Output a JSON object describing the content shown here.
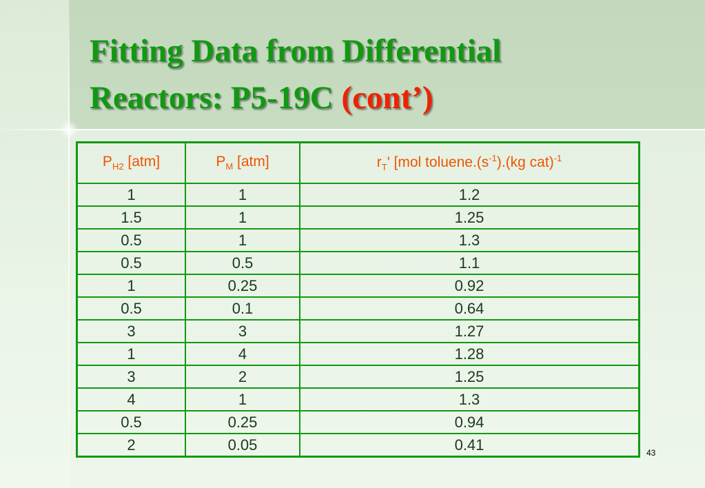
{
  "slide": {
    "title_line1": "Fitting Data from Differential",
    "title_line2_main": "Reactors: P5-19C ",
    "title_line2_accent": "(cont’)",
    "page_number": "43",
    "colors": {
      "title_green": "#119911",
      "accent_red": "#ee2200",
      "header_orange": "#ee5500",
      "border_green": "#119911"
    }
  },
  "table": {
    "headers": {
      "col1_main": "P",
      "col1_sub": "H2",
      "col1_unit": " [atm]",
      "col2_main": "P",
      "col2_sub": "M",
      "col2_unit": " [atm]",
      "col3_r": "r",
      "col3_sub": "T",
      "col3_text1": "' [mol toluene.(s",
      "col3_sup1": "-1",
      "col3_text2": ").(kg cat)",
      "col3_sup2": "-1"
    },
    "rows": [
      [
        "1",
        "1",
        "1.2"
      ],
      [
        "1.5",
        "1",
        "1.25"
      ],
      [
        "0.5",
        "1",
        "1.3"
      ],
      [
        "0.5",
        "0.5",
        "1.1"
      ],
      [
        "1",
        "0.25",
        "0.92"
      ],
      [
        "0.5",
        "0.1",
        "0.64"
      ],
      [
        "3",
        "3",
        "1.27"
      ],
      [
        "1",
        "4",
        "1.28"
      ],
      [
        "3",
        "2",
        "1.25"
      ],
      [
        "4",
        "1",
        "1.3"
      ],
      [
        "0.5",
        "0.25",
        "0.94"
      ],
      [
        "2",
        "0.05",
        "0.41"
      ]
    ]
  }
}
